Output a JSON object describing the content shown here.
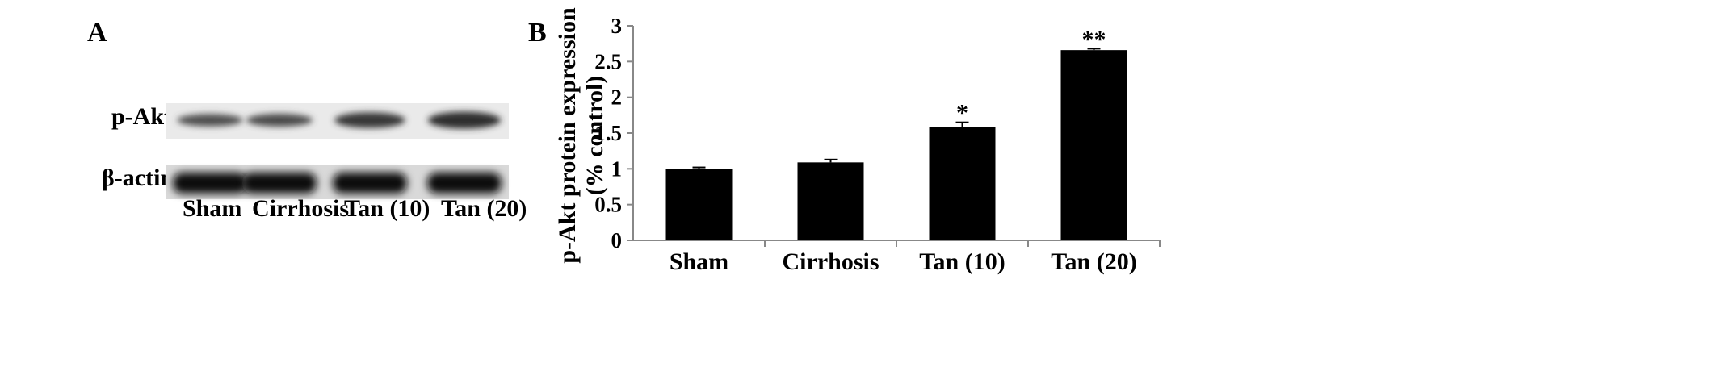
{
  "panel_a": {
    "letter": "A",
    "rows": [
      {
        "label": "p-Akt"
      },
      {
        "label": "β-actin"
      }
    ],
    "lanes": [
      "Sham",
      "Cirrhosis",
      "Tan (10)",
      "Tan (20)"
    ],
    "band_intensity": {
      "p-Akt": [
        0.45,
        0.5,
        0.78,
        0.92
      ],
      "β-actin": [
        1.0,
        1.0,
        1.0,
        1.0
      ]
    }
  },
  "panel_b": {
    "letter": "B"
  },
  "chart_data": {
    "type": "bar",
    "categories": [
      "Sham",
      "Cirrhosis",
      "Tan (10)",
      "Tan (20)"
    ],
    "values": [
      1.0,
      1.09,
      1.58,
      2.66
    ],
    "errors": [
      0.02,
      0.04,
      0.07,
      0.02
    ],
    "annotations": [
      "",
      "",
      "*",
      "**"
    ],
    "ylabel_line1": "p-Akt protein expression",
    "ylabel_line2": "(% control)",
    "xlabel": "",
    "ylim": [
      0,
      3
    ],
    "yticks": [
      "0",
      "0.5",
      "1",
      "1.5",
      "2",
      "2.5",
      "3"
    ],
    "bar_color": "#000000",
    "grid": false
  }
}
